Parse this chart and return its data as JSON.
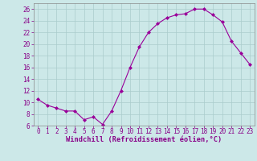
{
  "hours": [
    0,
    1,
    2,
    3,
    4,
    5,
    6,
    7,
    8,
    9,
    10,
    11,
    12,
    13,
    14,
    15,
    16,
    17,
    18,
    19,
    20,
    21,
    22,
    23
  ],
  "values": [
    10.5,
    9.5,
    9.0,
    8.5,
    8.5,
    7.0,
    7.5,
    6.2,
    8.5,
    12.0,
    16.0,
    19.5,
    22.0,
    23.5,
    24.5,
    25.0,
    25.2,
    26.0,
    26.0,
    25.0,
    23.8,
    20.5,
    18.5,
    16.5
  ],
  "line_color": "#990099",
  "marker": "D",
  "marker_size": 2.0,
  "bg_color": "#cce8e8",
  "grid_color": "#aacccc",
  "xlabel": "Windchill (Refroidissement éolien,°C)",
  "ylim": [
    6,
    27
  ],
  "yticks": [
    6,
    8,
    10,
    12,
    14,
    16,
    18,
    20,
    22,
    24,
    26
  ],
  "xtick_labels": [
    "0",
    "1",
    "2",
    "3",
    "4",
    "5",
    "6",
    "7",
    "8",
    "9",
    "10",
    "11",
    "12",
    "13",
    "14",
    "15",
    "16",
    "17",
    "18",
    "19",
    "20",
    "21",
    "22",
    "23"
  ],
  "xlabel_color": "#880088",
  "tick_color": "#880088",
  "tick_fontsize": 5.5,
  "xlabel_fontsize": 6.2,
  "linewidth": 0.8
}
